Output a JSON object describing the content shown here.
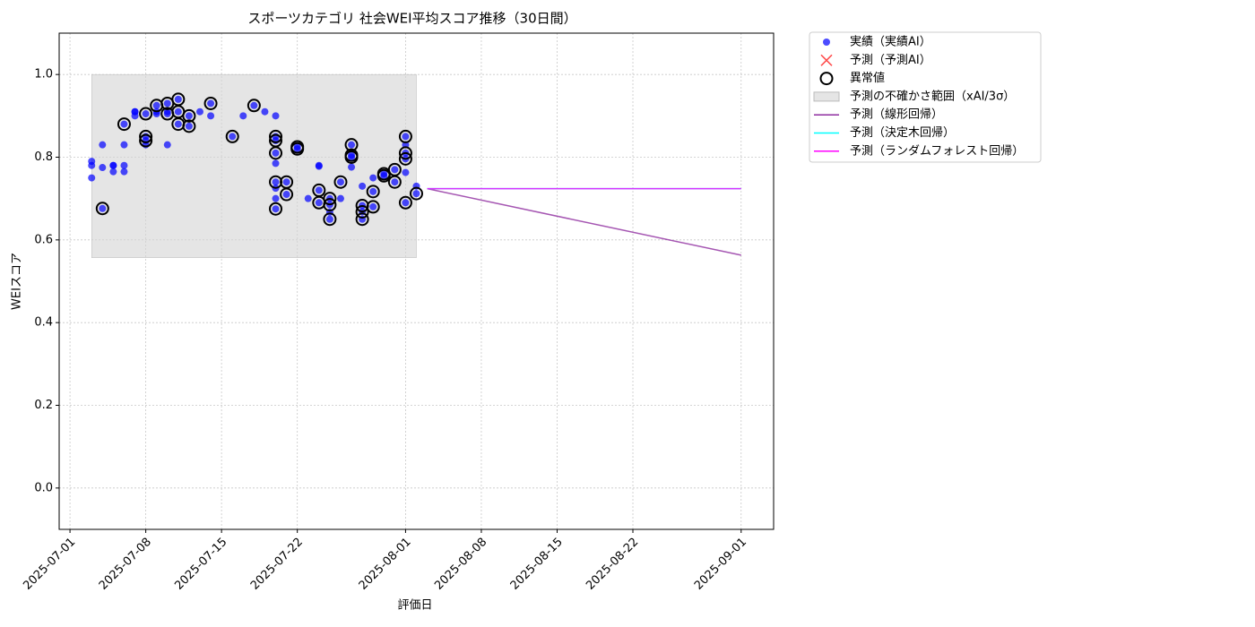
{
  "chart_data": {
    "type": "scatter",
    "title": "スポーツカテゴリ 社会WEI平均スコア推移（30日間）",
    "x_label": "評価日",
    "y_label": "WEIスコア",
    "xlim": [
      "2025-06-30",
      "2025-09-04"
    ],
    "xticks": [
      "2025-07-01",
      "2025-07-08",
      "2025-07-15",
      "2025-07-22",
      "2025-08-01",
      "2025-08-08",
      "2025-08-15",
      "2025-08-22",
      "2025-09-01"
    ],
    "ylim": [
      -0.1,
      1.1
    ],
    "yticks": [
      {
        "value": 0,
        "label": "0.0"
      },
      0.2,
      0.4,
      0.6,
      0.8,
      {
        "value": 1,
        "label": "1.0"
      }
    ],
    "grid": true,
    "legend": "outside-upper-right",
    "band": {
      "name": "予測の不確かさ範囲（xAI/3σ）",
      "color": "#d3d3d3",
      "x": [
        "2025-07-03",
        "2025-08-02"
      ],
      "lower": 0.557,
      "upper": 1.0
    },
    "series": [
      {
        "name": "実績（実績AI）",
        "color": "#0000ff",
        "marker": "dot",
        "x": [
          "2025-07-03",
          "2025-07-03",
          "2025-07-03",
          "2025-07-04",
          "2025-07-04",
          "2025-07-04",
          "2025-07-05",
          "2025-07-05",
          "2025-07-05",
          "2025-07-06",
          "2025-07-06",
          "2025-07-06",
          "2025-07-06",
          "2025-07-07",
          "2025-07-07",
          "2025-07-07",
          "2025-07-08",
          "2025-07-08",
          "2025-07-08",
          "2025-07-08",
          "2025-07-09",
          "2025-07-09",
          "2025-07-09",
          "2025-07-10",
          "2025-07-10",
          "2025-07-10",
          "2025-07-10",
          "2025-07-11",
          "2025-07-11",
          "2025-07-11",
          "2025-07-12",
          "2025-07-12",
          "2025-07-13",
          "2025-07-14",
          "2025-07-14",
          "2025-07-16",
          "2025-07-17",
          "2025-07-18",
          "2025-07-19",
          "2025-07-20",
          "2025-07-20",
          "2025-07-20",
          "2025-07-20",
          "2025-07-20",
          "2025-07-20",
          "2025-07-20",
          "2025-07-20",
          "2025-07-20",
          "2025-07-21",
          "2025-07-21",
          "2025-07-22",
          "2025-07-22",
          "2025-07-23",
          "2025-07-24",
          "2025-07-24",
          "2025-07-24",
          "2025-07-24",
          "2025-07-25",
          "2025-07-25",
          "2025-07-25",
          "2025-07-25",
          "2025-07-26",
          "2025-07-26",
          "2025-07-27",
          "2025-07-27",
          "2025-07-27",
          "2025-07-27",
          "2025-07-28",
          "2025-07-28",
          "2025-07-28",
          "2025-07-28",
          "2025-07-29",
          "2025-07-29",
          "2025-07-29",
          "2025-07-30",
          "2025-07-30",
          "2025-07-31",
          "2025-07-31",
          "2025-08-01",
          "2025-08-01",
          "2025-08-01",
          "2025-08-01",
          "2025-08-01",
          "2025-08-01",
          "2025-08-02",
          "2025-08-02"
        ],
        "values": [
          0.75,
          0.79,
          0.78,
          0.676,
          0.83,
          0.775,
          0.78,
          0.765,
          0.78,
          0.78,
          0.83,
          0.765,
          0.88,
          0.91,
          0.91,
          0.9,
          0.84,
          0.85,
          0.905,
          0.83,
          0.905,
          0.925,
          0.91,
          0.905,
          0.93,
          0.83,
          0.91,
          0.94,
          0.88,
          0.91,
          0.9,
          0.875,
          0.91,
          0.93,
          0.9,
          0.85,
          0.9,
          0.925,
          0.91,
          0.85,
          0.9,
          0.84,
          0.81,
          0.785,
          0.7,
          0.675,
          0.74,
          0.725,
          0.74,
          0.71,
          0.825,
          0.82,
          0.7,
          0.72,
          0.69,
          0.78,
          0.778,
          0.685,
          0.65,
          0.7,
          0.667,
          0.74,
          0.7,
          0.83,
          0.805,
          0.8,
          0.776,
          0.65,
          0.668,
          0.683,
          0.73,
          0.68,
          0.717,
          0.75,
          0.755,
          0.76,
          0.74,
          0.77,
          0.85,
          0.81,
          0.796,
          0.69,
          0.763,
          0.83,
          0.712,
          0.73
        ]
      },
      {
        "name": "予測（予測AI）",
        "color": "#ff0000",
        "marker": "x",
        "x": [],
        "values": []
      },
      {
        "name": "異常値",
        "color": "#000000",
        "marker": "ring",
        "x": [
          "2025-07-04",
          "2025-07-06",
          "2025-07-08",
          "2025-07-08",
          "2025-07-08",
          "2025-07-09",
          "2025-07-10",
          "2025-07-10",
          "2025-07-11",
          "2025-07-11",
          "2025-07-11",
          "2025-07-12",
          "2025-07-12",
          "2025-07-14",
          "2025-07-16",
          "2025-07-18",
          "2025-07-20",
          "2025-07-20",
          "2025-07-20",
          "2025-07-20",
          "2025-07-20",
          "2025-07-21",
          "2025-07-21",
          "2025-07-22",
          "2025-07-22",
          "2025-07-24",
          "2025-07-24",
          "2025-07-25",
          "2025-07-25",
          "2025-07-25",
          "2025-07-26",
          "2025-07-27",
          "2025-07-27",
          "2025-07-27",
          "2025-07-28",
          "2025-07-28",
          "2025-07-28",
          "2025-07-29",
          "2025-07-29",
          "2025-07-30",
          "2025-07-30",
          "2025-07-31",
          "2025-07-31",
          "2025-08-01",
          "2025-08-01",
          "2025-08-01",
          "2025-08-01",
          "2025-08-02"
        ],
        "values": [
          0.676,
          0.88,
          0.84,
          0.85,
          0.905,
          0.925,
          0.905,
          0.93,
          0.94,
          0.88,
          0.91,
          0.9,
          0.875,
          0.93,
          0.85,
          0.925,
          0.85,
          0.84,
          0.81,
          0.675,
          0.74,
          0.74,
          0.71,
          0.825,
          0.82,
          0.72,
          0.69,
          0.685,
          0.65,
          0.7,
          0.74,
          0.83,
          0.805,
          0.8,
          0.65,
          0.668,
          0.683,
          0.68,
          0.717,
          0.755,
          0.76,
          0.74,
          0.77,
          0.85,
          0.81,
          0.796,
          0.69,
          0.712
        ]
      },
      {
        "name": "予測（線形回帰）",
        "color": "#8e2c9f",
        "marker": "line",
        "x": [
          "2025-08-03",
          "2025-09-01"
        ],
        "values": [
          0.724,
          0.563
        ]
      },
      {
        "name": "予測（決定木回帰）",
        "color": "#00ffff",
        "marker": "line",
        "x": [
          "2025-08-03",
          "2025-09-01"
        ],
        "values": [
          0.724,
          0.724
        ]
      },
      {
        "name": "予測（ランダムフォレスト回帰）",
        "color": "#ff00ff",
        "marker": "line",
        "x": [
          "2025-08-03",
          "2025-09-01"
        ],
        "values": [
          0.724,
          0.724
        ]
      }
    ]
  }
}
